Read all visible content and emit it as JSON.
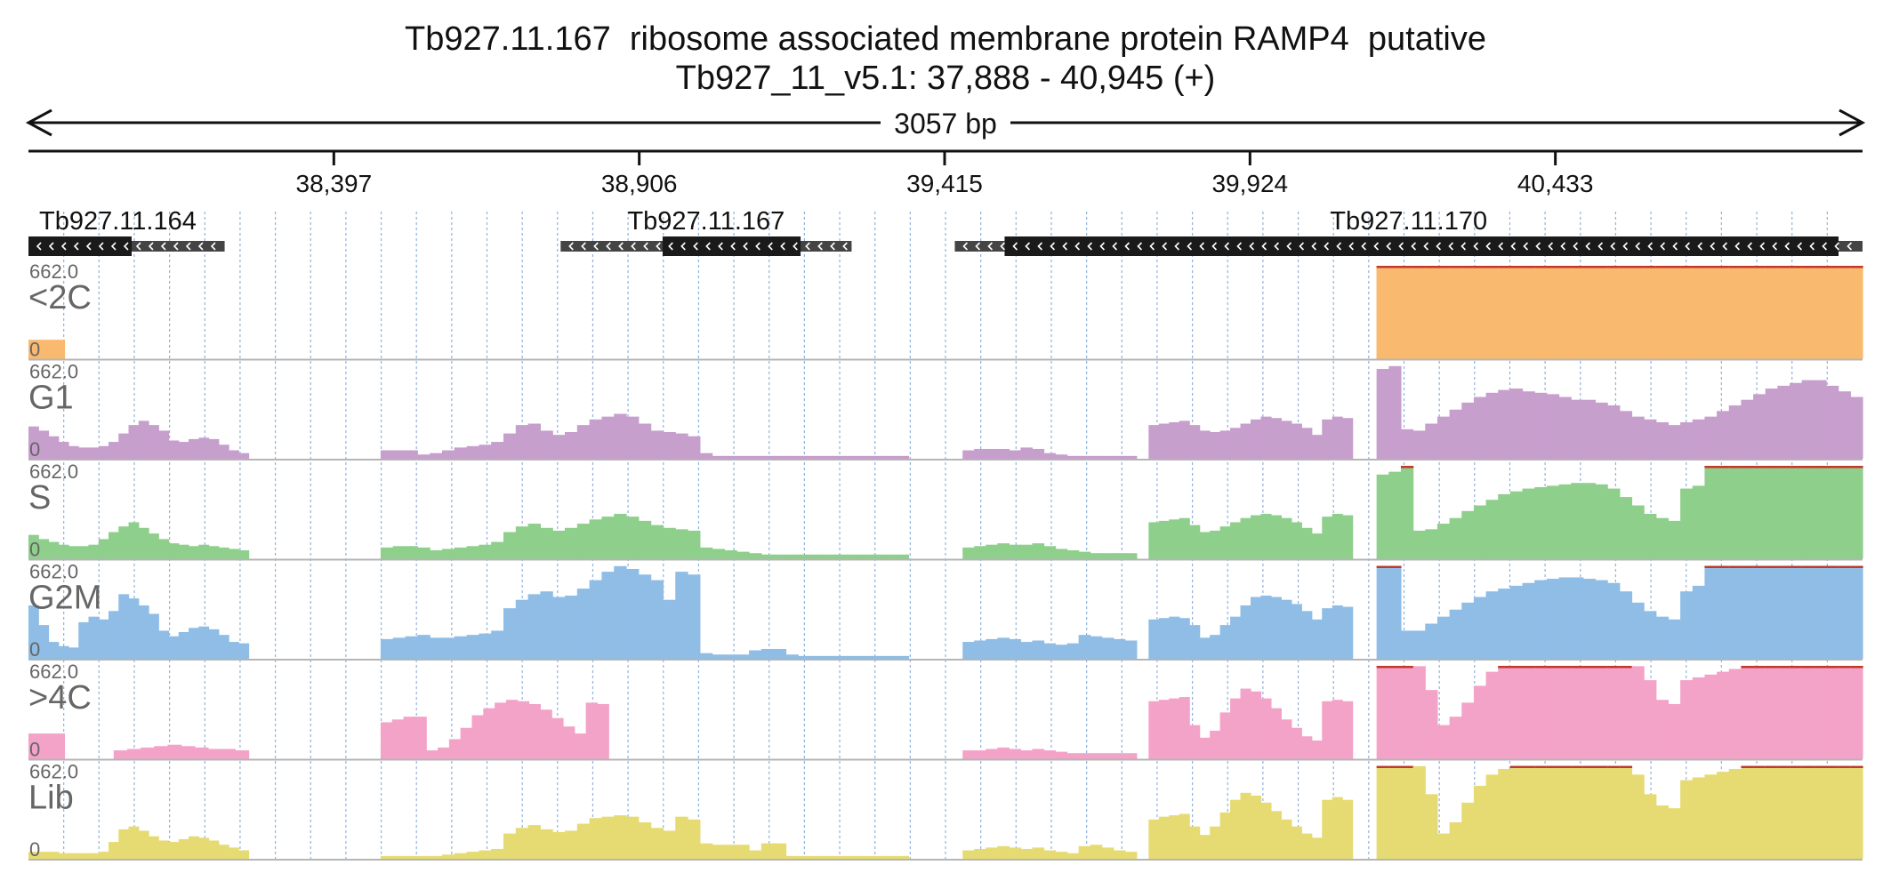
{
  "title": {
    "line1": "Tb927.11.167  ribosome associated membrane protein RAMP4  putative",
    "line2": "Tb927_11_v5.1: 37,888 - 40,945 (+)"
  },
  "span_label": "3057 bp",
  "colors": {
    "<2C": "#f9b96e",
    "G1": "#c79fcd",
    "S": "#8fcf8c",
    "G2M": "#8fbde6",
    ">4C": "#f4a3c8",
    "Lib": "#e6db73",
    "clip": "#c0392b",
    "gene_thick": "#1a1a1a",
    "gene_thin": "#444444",
    "grid": "#8fb3df"
  },
  "chart_data": {
    "type": "area",
    "region": {
      "chrom": "Tb927_11_v5.1",
      "start": 37888,
      "end": 40945,
      "strand": "+"
    },
    "x_ticks": [
      {
        "value": 38397,
        "label": "38,397"
      },
      {
        "value": 38906,
        "label": "38,906"
      },
      {
        "value": 39415,
        "label": "39,415"
      },
      {
        "value": 39924,
        "label": "39,924"
      },
      {
        "value": 40433,
        "label": "40,433"
      }
    ],
    "genes": [
      {
        "name": "Tb927.11.164",
        "strand": "-",
        "start": 37888,
        "end": 38215,
        "thick_start": 37888,
        "thick_end": 38060
      },
      {
        "name": "Tb927.11.167",
        "strand": "-",
        "start": 38775,
        "end": 39260,
        "thick_start": 38945,
        "thick_end": 39175
      },
      {
        "name": "Tb927.11.170",
        "strand": "-",
        "start": 39432,
        "end": 40945,
        "thick_start": 39515,
        "thick_end": 40905
      }
    ],
    "tracks": [
      {
        "name": "<2C",
        "max_label": "662.0",
        "min_label": "0",
        "ylim": [
          0,
          662
        ],
        "segments": [
          {
            "start": 37888,
            "end": 37948,
            "values": [
              135
            ]
          },
          {
            "start": 40135,
            "end": 40945,
            "values": [
              662,
              662,
              662,
              662,
              662,
              662,
              662,
              662,
              662,
              662,
              662,
              662,
              662,
              662,
              662,
              662,
              662,
              662,
              662,
              662,
              662,
              662,
              662,
              662,
              662,
              662,
              662,
              662,
              662,
              662,
              662,
              662,
              662,
              662,
              662,
              662,
              662,
              662,
              662,
              662
            ]
          },
          {
            "start": 40135,
            "end": 40185,
            "values": [
              662
            ]
          }
        ]
      },
      {
        "name": "G1",
        "max_label": "662.0",
        "min_label": "0",
        "ylim": [
          0,
          662
        ],
        "segments": [
          {
            "start": 37888,
            "end": 38255,
            "values": [
              230,
              200,
              160,
              120,
              90,
              80,
              80,
              90,
              120,
              180,
              240,
              270,
              240,
              200,
              130,
              120,
              140,
              150,
              140,
              100,
              60,
              40
            ]
          },
          {
            "start": 38475,
            "end": 39355,
            "values": [
              60,
              60,
              60,
              30,
              40,
              60,
              80,
              90,
              100,
              120,
              180,
              240,
              250,
              200,
              170,
              190,
              240,
              280,
              300,
              320,
              300,
              250,
              200,
              190,
              180,
              160,
              40,
              20,
              20,
              20,
              20,
              20,
              20,
              20,
              20,
              20,
              20,
              20,
              20,
              20,
              20,
              20,
              20
            ]
          },
          {
            "start": 39445,
            "end": 39735,
            "values": [
              60,
              70,
              70,
              70,
              60,
              80,
              70,
              40,
              30,
              20,
              20,
              20,
              20,
              20,
              20
            ]
          },
          {
            "start": 39755,
            "end": 40095,
            "values": [
              240,
              250,
              260,
              270,
              240,
              200,
              190,
              200,
              220,
              250,
              280,
              300,
              290,
              270,
              250,
              220,
              170,
              280,
              300,
              290
            ]
          },
          {
            "start": 40135,
            "end": 40945,
            "values": [
              640,
              660,
              210,
              200,
              250,
              300,
              350,
              400,
              440,
              470,
              490,
              500,
              480,
              470,
              460,
              440,
              420,
              420,
              400,
              380,
              340,
              300,
              280,
              260,
              240,
              260,
              280,
              300,
              340,
              380,
              420,
              460,
              500,
              520,
              540,
              560,
              560,
              520,
              480,
              440
            ]
          }
        ]
      },
      {
        "name": "S",
        "max_label": "662.0",
        "min_label": "0",
        "ylim": [
          0,
          662
        ],
        "segments": [
          {
            "start": 37888,
            "end": 38255,
            "values": [
              170,
              140,
              120,
              100,
              90,
              90,
              100,
              140,
              190,
              230,
              260,
              220,
              180,
              140,
              110,
              100,
              90,
              100,
              90,
              80,
              70,
              60
            ]
          },
          {
            "start": 38475,
            "end": 39355,
            "values": [
              80,
              90,
              90,
              80,
              60,
              70,
              80,
              90,
              100,
              120,
              190,
              230,
              250,
              220,
              200,
              220,
              250,
              280,
              300,
              320,
              300,
              270,
              240,
              220,
              210,
              200,
              80,
              70,
              60,
              50,
              40,
              30,
              30,
              30,
              30,
              30,
              30,
              30,
              30,
              30,
              30,
              30,
              30
            ]
          },
          {
            "start": 39445,
            "end": 39735,
            "values": [
              80,
              90,
              100,
              110,
              100,
              100,
              110,
              90,
              70,
              60,
              50,
              40,
              40,
              40,
              40
            ]
          },
          {
            "start": 39755,
            "end": 40095,
            "values": [
              260,
              270,
              280,
              290,
              240,
              190,
              200,
              230,
              260,
              290,
              310,
              320,
              310,
              290,
              260,
              220,
              180,
              300,
              320,
              310
            ]
          },
          {
            "start": 40135,
            "end": 40945,
            "values": [
              600,
              620,
              662,
              200,
              210,
              250,
              290,
              340,
              380,
              420,
              460,
              480,
              500,
              510,
              520,
              530,
              540,
              540,
              530,
              500,
              440,
              380,
              320,
              290,
              270,
              500,
              520,
              662,
              662,
              662,
              662,
              662,
              662,
              662,
              662,
              662,
              662,
              662,
              662,
              662
            ]
          }
        ]
      },
      {
        "name": "G2M",
        "max_label": "662.0",
        "min_label": "0",
        "ylim": [
          0,
          662
        ],
        "segments": [
          {
            "start": 37888,
            "end": 38255,
            "values": [
              380,
              240,
              120,
              90,
              80,
              260,
              300,
              280,
              340,
              460,
              430,
              380,
              320,
              200,
              160,
              190,
              220,
              230,
              210,
              170,
              120,
              110
            ]
          },
          {
            "start": 38475,
            "end": 39355,
            "values": [
              140,
              150,
              160,
              170,
              150,
              150,
              160,
              170,
              180,
              200,
              360,
              420,
              460,
              480,
              440,
              450,
              500,
              560,
              620,
              660,
              640,
              600,
              560,
              420,
              620,
              600,
              40,
              30,
              30,
              30,
              60,
              70,
              70,
              30,
              20,
              20,
              20,
              20,
              20,
              20,
              20,
              20,
              20
            ]
          },
          {
            "start": 39445,
            "end": 39735,
            "values": [
              120,
              130,
              140,
              150,
              140,
              120,
              130,
              110,
              100,
              110,
              170,
              160,
              150,
              140,
              130
            ]
          },
          {
            "start": 39755,
            "end": 40095,
            "values": [
              280,
              290,
              300,
              290,
              240,
              150,
              170,
              240,
              300,
              380,
              440,
              450,
              440,
              420,
              390,
              340,
              280,
              360,
              380,
              370
            ]
          },
          {
            "start": 40135,
            "end": 40945,
            "values": [
              662,
              662,
              200,
              200,
              250,
              300,
              350,
              400,
              440,
              480,
              500,
              520,
              540,
              560,
              570,
              580,
              580,
              570,
              560,
              540,
              480,
              400,
              340,
              300,
              280,
              480,
              520,
              662,
              662,
              662,
              662,
              662,
              662,
              662,
              662,
              662,
              662,
              662,
              662,
              662
            ]
          }
        ]
      },
      {
        "name": ">4C",
        "max_label": "662.0",
        "min_label": "0",
        "ylim": [
          0,
          662
        ],
        "segments": [
          {
            "start": 37888,
            "end": 37948,
            "values": [
              180
            ]
          },
          {
            "start": 38030,
            "end": 38255,
            "values": [
              60,
              70,
              80,
              90,
              100,
              90,
              80,
              70,
              70,
              60
            ]
          },
          {
            "start": 38475,
            "end": 38855,
            "values": [
              260,
              280,
              300,
              300,
              60,
              80,
              140,
              220,
              310,
              360,
              400,
              420,
              410,
              390,
              350,
              290,
              230,
              180,
              400,
              390
            ]
          },
          {
            "start": 39445,
            "end": 39735,
            "values": [
              60,
              60,
              70,
              80,
              70,
              60,
              70,
              60,
              50,
              40,
              40,
              40,
              40,
              40,
              40
            ]
          },
          {
            "start": 39755,
            "end": 40095,
            "values": [
              410,
              420,
              430,
              440,
              240,
              150,
              200,
              330,
              430,
              500,
              480,
              430,
              360,
              280,
              220,
              160,
              130,
              410,
              420,
              410
            ]
          },
          {
            "start": 40135,
            "end": 40945,
            "values": [
              662,
              662,
              662,
              660,
              490,
              240,
              300,
              400,
              520,
              620,
              662,
              662,
              662,
              662,
              662,
              662,
              662,
              662,
              662,
              662,
              662,
              660,
              560,
              420,
              390,
              560,
              580,
              600,
              620,
              640,
              662,
              662,
              662,
              662,
              662,
              662,
              662,
              662,
              662,
              662
            ]
          }
        ]
      },
      {
        "name": "Lib",
        "max_label": "662.0",
        "min_label": "0",
        "ylim": [
          0,
          662
        ],
        "segments": [
          {
            "start": 37888,
            "end": 38255,
            "values": [
              50,
              50,
              50,
              40,
              40,
              40,
              40,
              50,
              120,
              210,
              230,
              200,
              160,
              130,
              120,
              140,
              160,
              150,
              130,
              100,
              80,
              60
            ]
          },
          {
            "start": 38475,
            "end": 39355,
            "values": [
              20,
              20,
              20,
              20,
              20,
              30,
              40,
              50,
              60,
              70,
              180,
              220,
              240,
              210,
              190,
              200,
              250,
              290,
              300,
              310,
              300,
              260,
              220,
              200,
              300,
              280,
              110,
              100,
              100,
              100,
              60,
              110,
              110,
              20,
              20,
              20,
              20,
              20,
              20,
              20,
              20,
              20,
              20
            ]
          },
          {
            "start": 39445,
            "end": 39735,
            "values": [
              60,
              70,
              80,
              90,
              80,
              70,
              80,
              60,
              50,
              40,
              90,
              100,
              80,
              60,
              50
            ]
          },
          {
            "start": 39755,
            "end": 40095,
            "values": [
              280,
              300,
              310,
              320,
              230,
              170,
              230,
              330,
              420,
              470,
              450,
              400,
              340,
              280,
              230,
              180,
              150,
              420,
              440,
              420
            ]
          },
          {
            "start": 40135,
            "end": 40945,
            "values": [
              662,
              662,
              662,
              660,
              460,
              180,
              260,
              400,
              520,
              600,
              640,
              662,
              662,
              662,
              662,
              662,
              662,
              662,
              662,
              662,
              662,
              600,
              460,
              380,
              360,
              560,
              580,
              600,
              620,
              640,
              662,
              662,
              662,
              662,
              662,
              662,
              662,
              662,
              662,
              662
            ]
          }
        ]
      }
    ]
  }
}
